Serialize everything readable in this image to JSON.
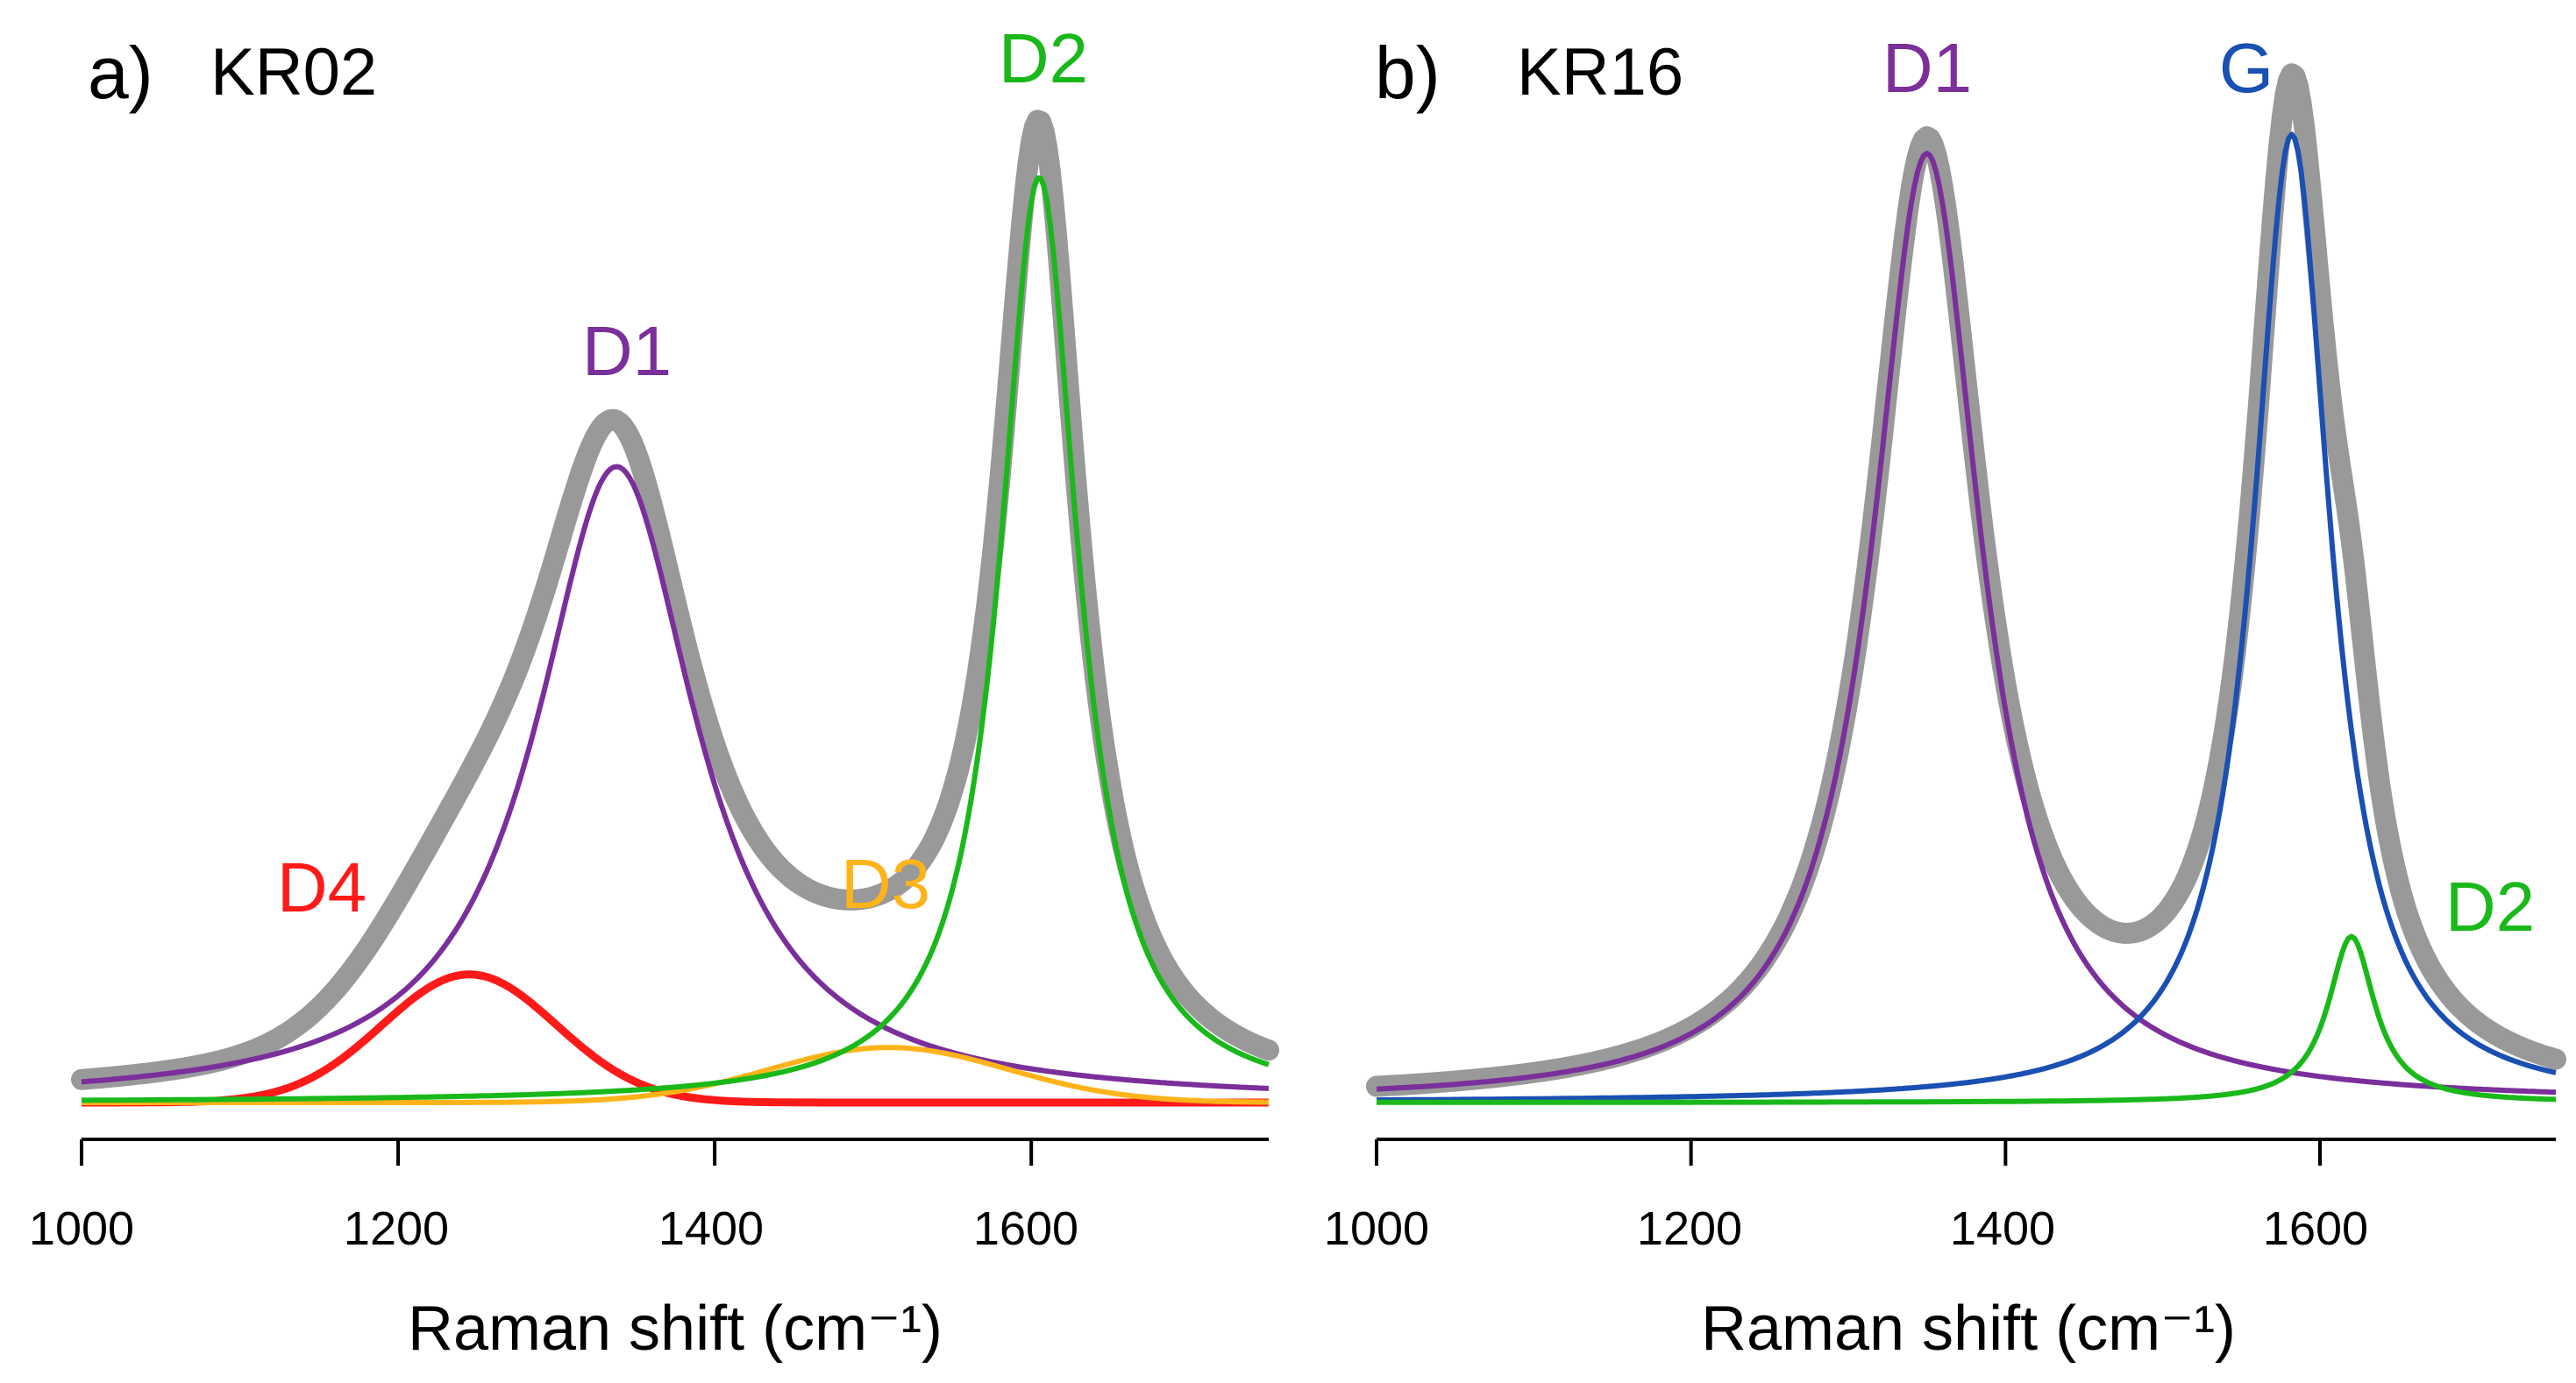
{
  "chart_data": [
    {
      "type": "line",
      "panel": "a)",
      "title": "KR02",
      "xlabel": "Raman shift (cm⁻¹)",
      "xlim": [
        1000,
        1750
      ],
      "ylim": [
        0,
        1.0
      ],
      "xticks": [
        "1000",
        "1200",
        "1400",
        "1600"
      ],
      "yaxis_visible": false,
      "components": [
        {
          "name": "D4",
          "color": "#ff1a1a",
          "shape": "gauss",
          "center": 1245,
          "width": 55,
          "amp": 0.135
        },
        {
          "name": "D1",
          "color": "#7a2f9b",
          "shape": "lorentz",
          "center": 1338,
          "width": 62,
          "amp": 0.67
        },
        {
          "name": "D3",
          "color": "#ffb31a",
          "shape": "gauss",
          "center": 1510,
          "width": 75,
          "amp": 0.058
        },
        {
          "name": "D2",
          "color": "#1ab81a",
          "shape": "lorentz",
          "center": 1605,
          "width": 30,
          "amp": 0.975
        }
      ],
      "envelope": {
        "name": "sum",
        "color": "#999999"
      },
      "labels": [
        {
          "text": "D4",
          "color": "#ff1a1a"
        },
        {
          "text": "D1",
          "color": "#7a2f9b"
        },
        {
          "text": "D3",
          "color": "#ffb31a"
        },
        {
          "text": "D2",
          "color": "#1ab81a"
        }
      ]
    },
    {
      "type": "line",
      "panel": "b)",
      "title": "KR16",
      "xlabel": "Raman shift (cm⁻¹)",
      "xlim": [
        1000,
        1750
      ],
      "ylim": [
        0,
        1.0
      ],
      "xticks": [
        "1000",
        "1200",
        "1400",
        "1600"
      ],
      "yaxis_visible": false,
      "components": [
        {
          "name": "D1",
          "color": "#7a2f9b",
          "shape": "lorentz",
          "center": 1350,
          "width": 42,
          "amp": 1.0
        },
        {
          "name": "G",
          "color": "#1a4fb3",
          "shape": "lorentz",
          "center": 1582,
          "width": 30,
          "amp": 1.02
        },
        {
          "name": "D2",
          "color": "#1ab81a",
          "shape": "lorentz",
          "center": 1620,
          "width": 18,
          "amp": 0.175
        }
      ],
      "envelope": {
        "name": "sum",
        "color": "#999999"
      },
      "labels": [
        {
          "text": "D1",
          "color": "#7a2f9b"
        },
        {
          "text": "G",
          "color": "#1a4fb3"
        },
        {
          "text": "D2",
          "color": "#1ab81a"
        }
      ]
    }
  ]
}
